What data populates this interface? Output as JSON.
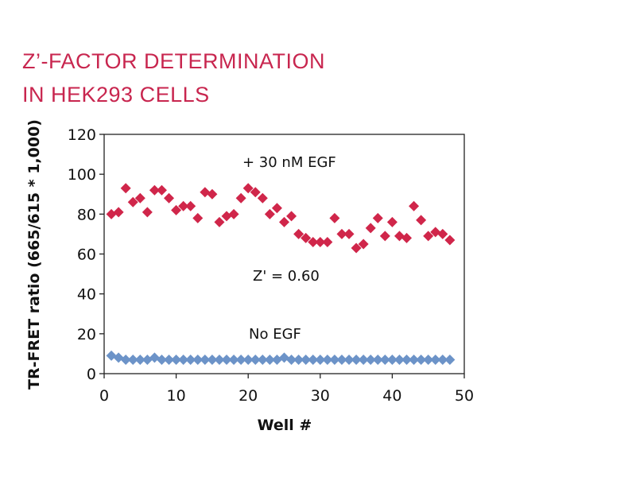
{
  "title_line1": "Z’-FACTOR DETERMINATION",
  "title_line2": "IN HEK293 CELLS",
  "chart_data": {
    "type": "scatter",
    "title": "Z’-FACTOR DETERMINATION IN HEK293 CELLS",
    "xlabel": "Well #",
    "ylabel": "TR-FRET ratio (665/615 * 1,000)",
    "xlim": [
      0,
      50
    ],
    "ylim": [
      0,
      120
    ],
    "xticks": [
      "0",
      "10",
      "20",
      "30",
      "40",
      "50"
    ],
    "yticks": [
      "0",
      "20",
      "40",
      "60",
      "80",
      "100",
      "120"
    ],
    "grid": false,
    "annotations": {
      "egf": "+ 30 nM  EGF",
      "zprime": "Z' = 0.60",
      "no_egf": "No  EGF"
    },
    "series": [
      {
        "name": "+ 30 nM EGF",
        "color": "#d0264a",
        "x": [
          1,
          2,
          3,
          4,
          5,
          6,
          7,
          8,
          9,
          10,
          11,
          12,
          13,
          14,
          15,
          16,
          17,
          18,
          19,
          20,
          21,
          22,
          23,
          24,
          25,
          26,
          27,
          28,
          29,
          30,
          31,
          32,
          33,
          34,
          35,
          36,
          37,
          38,
          39,
          40,
          41,
          42,
          43,
          44,
          45,
          46,
          47,
          48
        ],
        "y": [
          80,
          81,
          93,
          86,
          88,
          81,
          92,
          92,
          88,
          82,
          84,
          84,
          78,
          91,
          90,
          76,
          79,
          80,
          88,
          93,
          91,
          88,
          80,
          83,
          76,
          79,
          70,
          68,
          66,
          66,
          66,
          78,
          70,
          70,
          63,
          65,
          73,
          78,
          69,
          76,
          69,
          68,
          84,
          77,
          69,
          71,
          70,
          67
        ]
      },
      {
        "name": "No EGF",
        "color": "#6c93c8",
        "x": [
          1,
          2,
          3,
          4,
          5,
          6,
          7,
          8,
          9,
          10,
          11,
          12,
          13,
          14,
          15,
          16,
          17,
          18,
          19,
          20,
          21,
          22,
          23,
          24,
          25,
          26,
          27,
          28,
          29,
          30,
          31,
          32,
          33,
          34,
          35,
          36,
          37,
          38,
          39,
          40,
          41,
          42,
          43,
          44,
          45,
          46,
          47,
          48
        ],
        "y": [
          9,
          8,
          7,
          7,
          7,
          7,
          8,
          7,
          7,
          7,
          7,
          7,
          7,
          7,
          7,
          7,
          7,
          7,
          7,
          7,
          7,
          7,
          7,
          7,
          8,
          7,
          7,
          7,
          7,
          7,
          7,
          7,
          7,
          7,
          7,
          7,
          7,
          7,
          7,
          7,
          7,
          7,
          7,
          7,
          7,
          7,
          7,
          7
        ]
      }
    ]
  }
}
